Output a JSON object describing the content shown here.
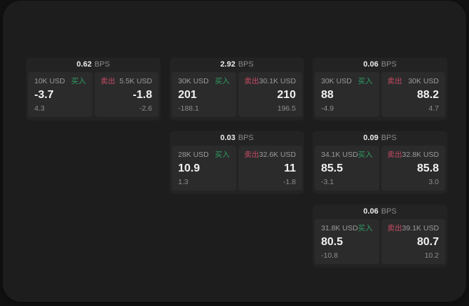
{
  "labels": {
    "bps_suffix": "BPS",
    "buy": "买入",
    "sell": "卖出"
  },
  "colors": {
    "buy": "#2f9e62",
    "sell": "#c64b62",
    "panel_bg": "#1d1d1e",
    "card_bg": "#232324",
    "tile_bg": "#2b2b2c"
  },
  "cards": [
    {
      "col": 1,
      "row": 1,
      "bps": "0.62",
      "buy": {
        "amount": "10K USD",
        "value": "-3.7",
        "delta": "4.3"
      },
      "sell": {
        "amount": "5.5K USD",
        "value": "-1.8",
        "delta": "-2.6"
      }
    },
    {
      "col": 2,
      "row": 1,
      "bps": "2.92",
      "buy": {
        "amount": "30K USD",
        "value": "201",
        "delta": "-188.1"
      },
      "sell": {
        "amount": "30.1K USD",
        "value": "210",
        "delta": "196.5"
      }
    },
    {
      "col": 3,
      "row": 1,
      "bps": "0.06",
      "buy": {
        "amount": "30K USD",
        "value": "88",
        "delta": "-4.9"
      },
      "sell": {
        "amount": "30K USD",
        "value": "88.2",
        "delta": "4.7"
      }
    },
    {
      "col": 2,
      "row": 2,
      "bps": "0.03",
      "buy": {
        "amount": "28K USD",
        "value": "10.9",
        "delta": "1.3"
      },
      "sell": {
        "amount": "32.6K USD",
        "value": "11",
        "delta": "-1.8"
      }
    },
    {
      "col": 3,
      "row": 2,
      "bps": "0.09",
      "buy": {
        "amount": "34.1K USD",
        "value": "85.5",
        "delta": "-3.1"
      },
      "sell": {
        "amount": "32.8K USD",
        "value": "85.8",
        "delta": "3.0"
      }
    },
    {
      "col": 3,
      "row": 3,
      "bps": "0.06",
      "buy": {
        "amount": "31.8K USD",
        "value": "80.5",
        "delta": "-10.8"
      },
      "sell": {
        "amount": "39.1K USD",
        "value": "80.7",
        "delta": "10.2"
      }
    }
  ]
}
